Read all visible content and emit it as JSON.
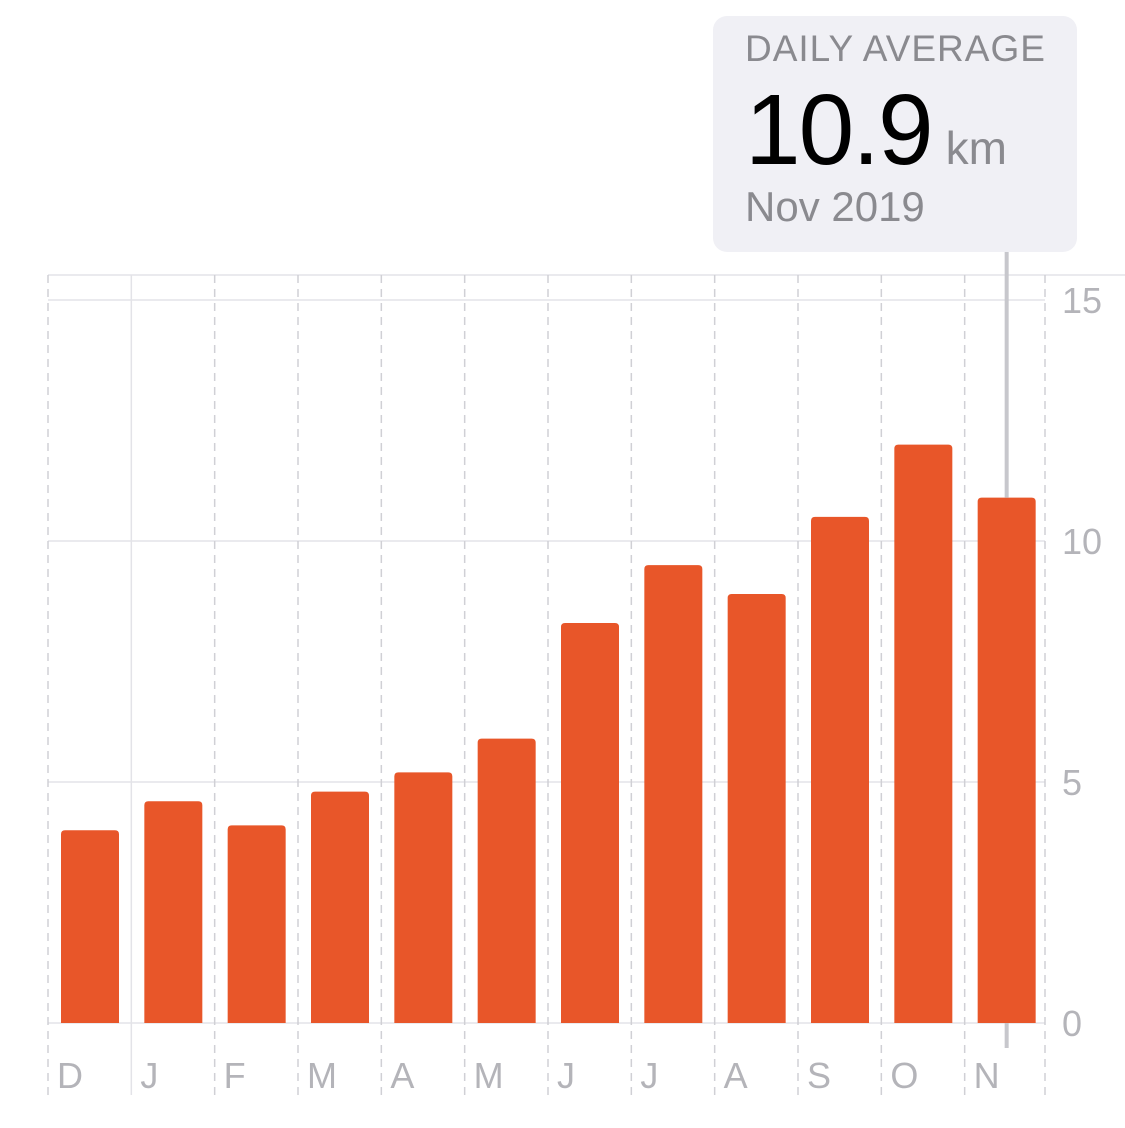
{
  "callout": {
    "title": "DAILY AVERAGE",
    "value": "10.9",
    "unit": "km",
    "date": "Nov 2019"
  },
  "chart_data": {
    "type": "bar",
    "categories": [
      "D",
      "J",
      "F",
      "M",
      "A",
      "M",
      "J",
      "J",
      "A",
      "S",
      "O",
      "N"
    ],
    "values": [
      4.0,
      4.6,
      4.1,
      4.8,
      5.2,
      5.9,
      8.3,
      9.5,
      8.9,
      10.5,
      12.0,
      10.9
    ],
    "ylim": [
      0,
      15
    ],
    "yticks": [
      0,
      5,
      10,
      15
    ],
    "ytick_labels": [
      "0",
      "5",
      "10",
      "15"
    ],
    "highlight_index": 11,
    "grid": true,
    "colors": {
      "bar": "#e85629",
      "gridline": "#e3e3e8",
      "dashed_gridline": "#d0d0d5",
      "axis_text": "#b4b4b9",
      "callout_bg": "#f0f0f5",
      "callout_line": "#c7c7cc"
    }
  }
}
